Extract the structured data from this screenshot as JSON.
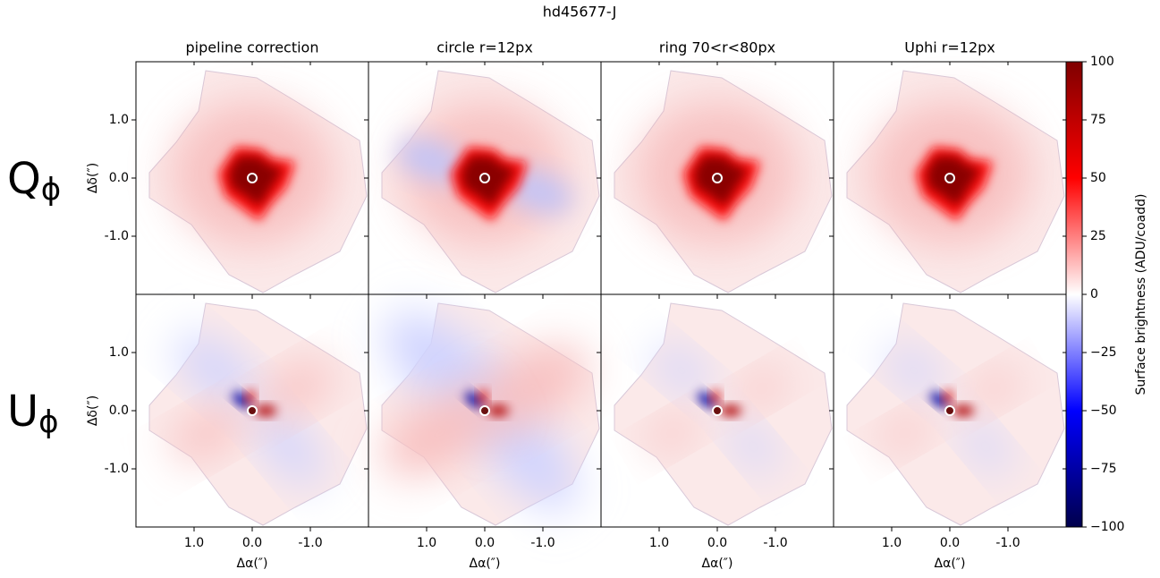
{
  "chart_data": {
    "type": "image",
    "title": "hd45677-J",
    "columns": [
      "pipeline correction",
      "circle r=12px",
      "ring 70<r<80px",
      "Uphi r=12px"
    ],
    "rows": [
      {
        "label": "Q",
        "subscript": "ϕ"
      },
      {
        "label": "U",
        "subscript": "ϕ"
      }
    ],
    "xlabel": "Δα(″)",
    "ylabel": "Δδ(″)",
    "xlim": [
      2,
      -2
    ],
    "ylim": [
      -2,
      2
    ],
    "xticks": [
      {
        "value": 1,
        "label": "1.0"
      },
      {
        "value": 0,
        "label": "0.0"
      },
      {
        "value": -1,
        "label": "-1.0"
      }
    ],
    "yticks": [
      {
        "value": 1,
        "label": "1.0"
      },
      {
        "value": 0,
        "label": "0.0"
      },
      {
        "value": -1,
        "label": "-1.0"
      }
    ],
    "colormap": "seismic",
    "clim": [
      -100,
      100
    ],
    "cticks": [
      100,
      75,
      50,
      25,
      0,
      {
        "value": -25,
        "label": "−25"
      },
      {
        "value": -50,
        "label": "−50"
      },
      {
        "value": -75,
        "label": "−75"
      },
      {
        "value": -100,
        "label": "−100"
      }
    ],
    "clabel": "Surface brightness (ADU/coadd)"
  }
}
